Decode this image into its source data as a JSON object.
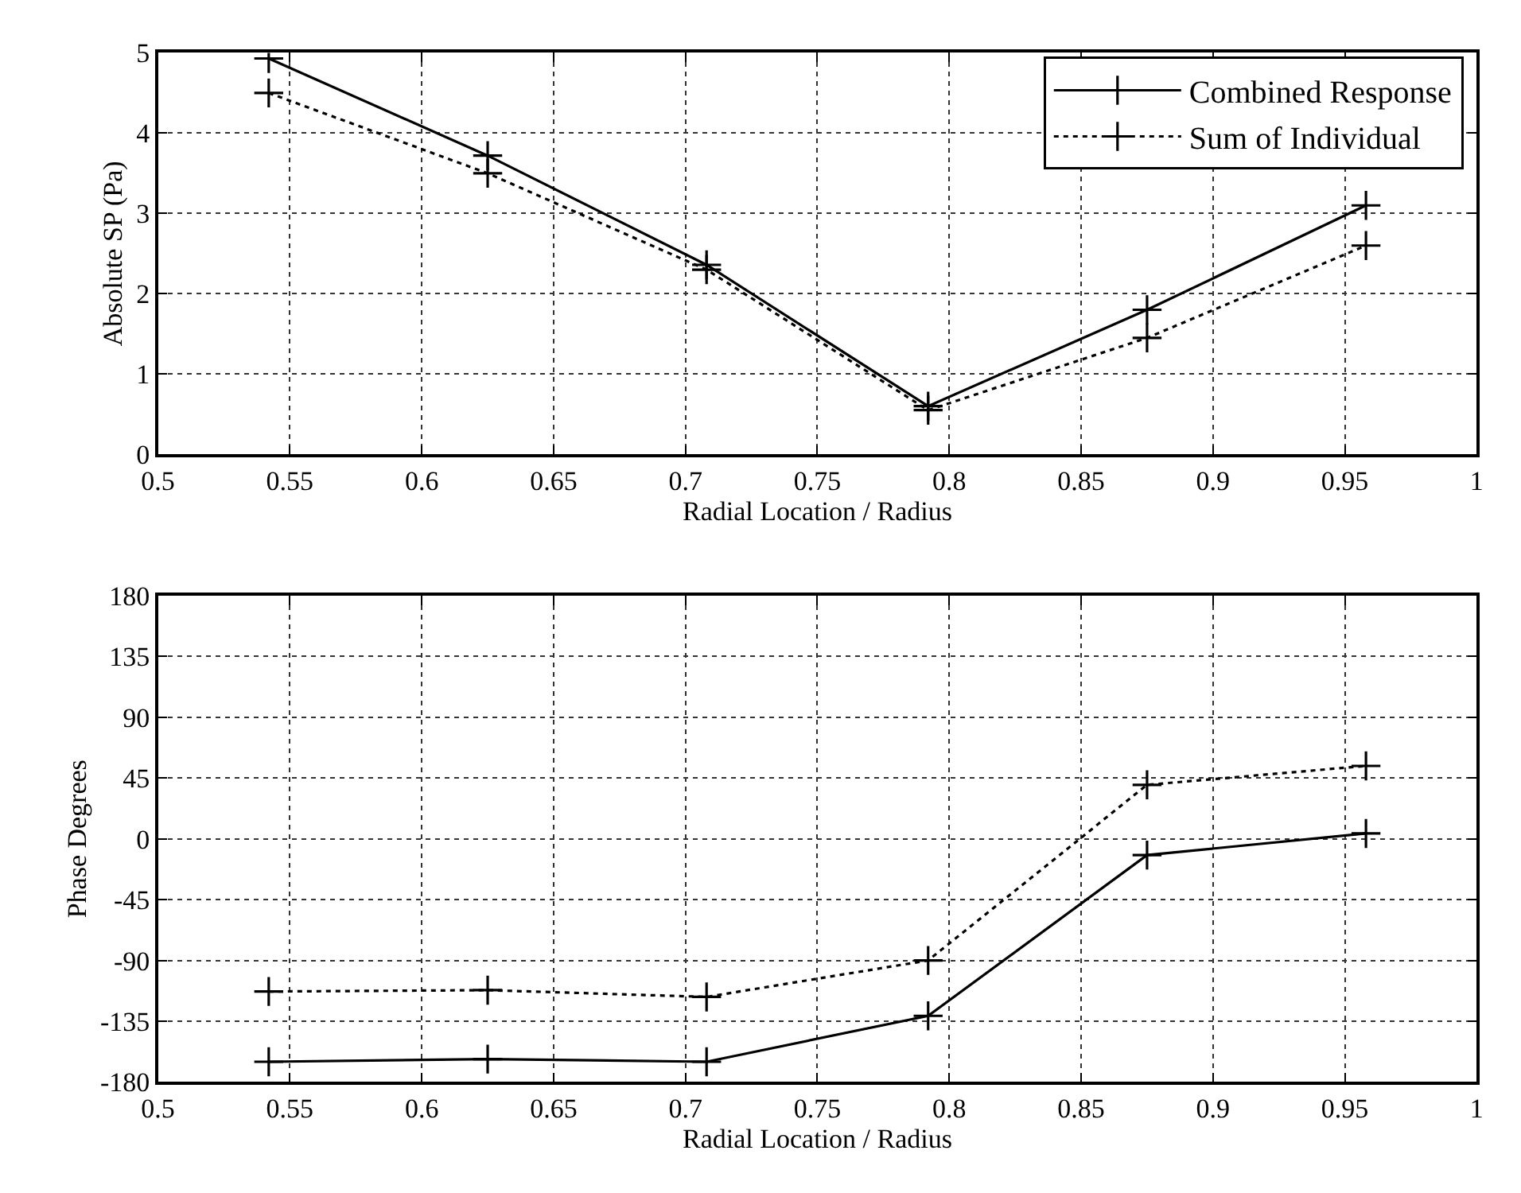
{
  "chart_data": [
    {
      "type": "line",
      "xlabel": "Radial Location / Radius",
      "ylabel": "Absolute SP (Pa)",
      "x": [
        0.542,
        0.625,
        0.708,
        0.792,
        0.875,
        0.958
      ],
      "series": [
        {
          "name": "Combined Response",
          "color": "#000000",
          "line_style": "solid",
          "values": [
            4.93,
            3.72,
            2.36,
            0.6,
            1.8,
            3.1
          ]
        },
        {
          "name": "Sum of Individual",
          "color": "#000000",
          "line_style": "dotted",
          "values": [
            4.5,
            3.5,
            2.3,
            0.55,
            1.45,
            2.6
          ]
        }
      ],
      "marker": "cross",
      "xlim": [
        0.5,
        1
      ],
      "xticks": [
        0.5,
        0.55,
        0.6,
        0.65,
        0.7,
        0.75,
        0.8,
        0.85,
        0.9,
        0.95,
        1
      ],
      "ylim": [
        0,
        5
      ],
      "yticks": [
        0,
        1,
        2,
        3,
        4,
        5
      ],
      "grid": true,
      "legend": "top right"
    },
    {
      "type": "line",
      "xlabel": "Radial Location / Radius",
      "ylabel": "Phase Degrees",
      "x": [
        0.542,
        0.625,
        0.708,
        0.792,
        0.875,
        0.958
      ],
      "series": [
        {
          "color": "#000000",
          "line_style": "solid",
          "values": [
            -165,
            -163,
            -165,
            -131,
            -12,
            4
          ]
        },
        {
          "color": "#000000",
          "line_style": "dotted",
          "values": [
            -113,
            -112,
            -117,
            -90,
            40,
            54
          ]
        }
      ],
      "marker": "cross",
      "xlim": [
        0.5,
        1
      ],
      "xticks": [
        0.5,
        0.55,
        0.6,
        0.65,
        0.7,
        0.75,
        0.8,
        0.85,
        0.9,
        0.95,
        1
      ],
      "ylim": [
        -180,
        180
      ],
      "yticks": [
        -180,
        -135,
        -90,
        -45,
        0,
        45,
        90,
        135,
        180
      ],
      "grid": true
    }
  ]
}
